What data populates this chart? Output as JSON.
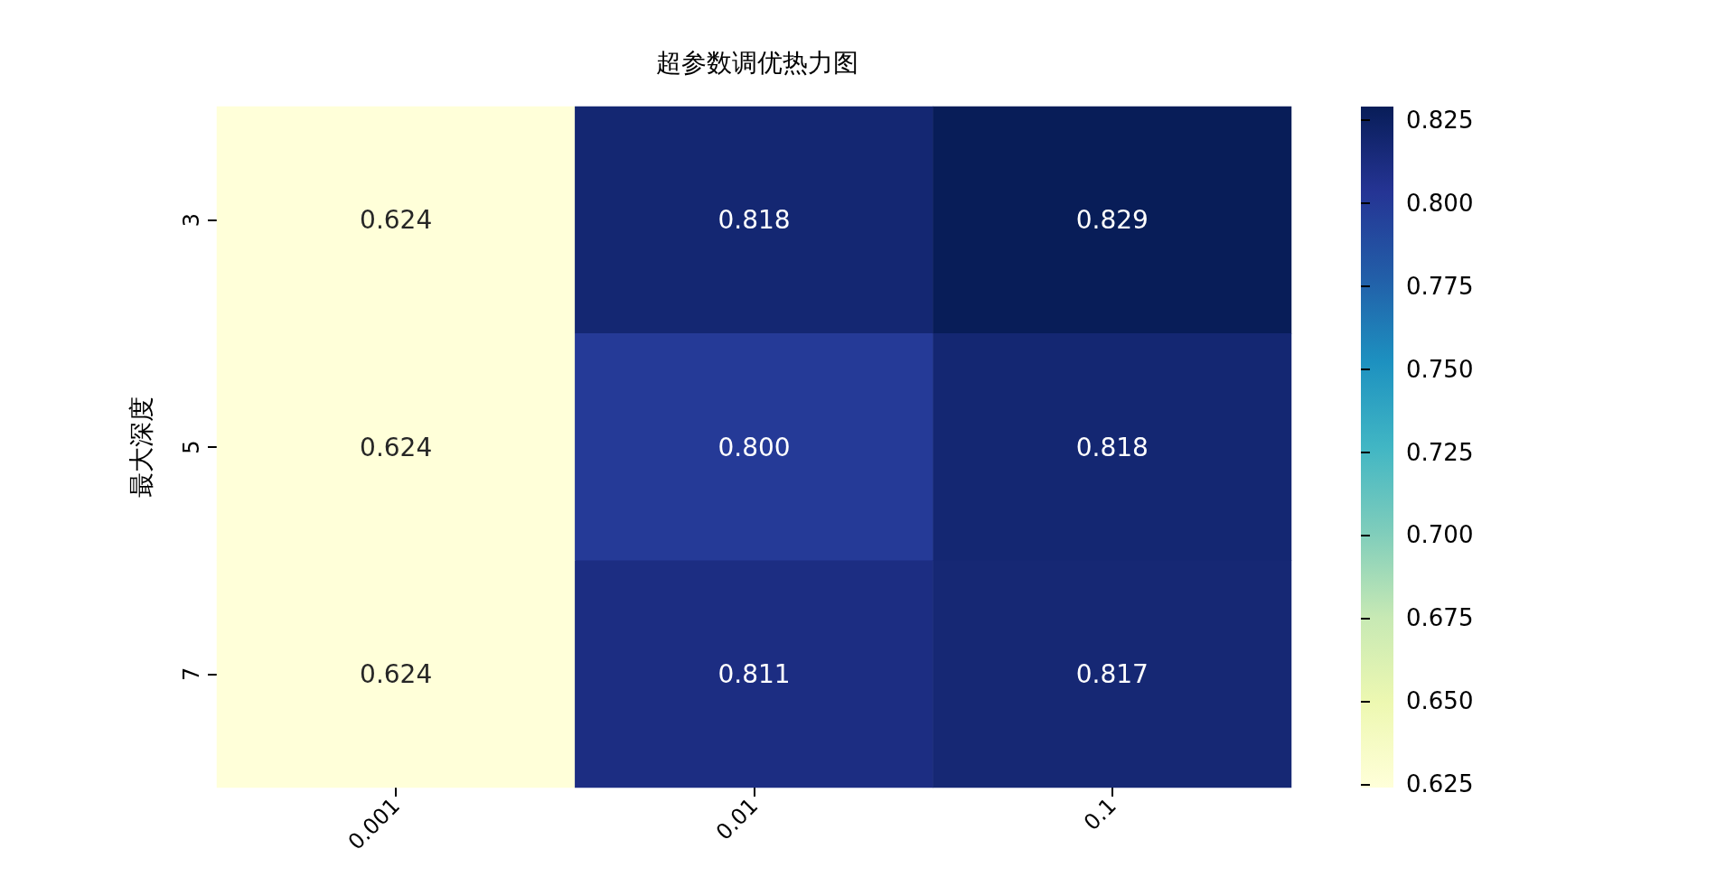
{
  "chart_data": {
    "type": "heatmap",
    "title": "超参数调优热力图",
    "ylabel": "最大深度",
    "categories": [
      "0.001",
      "0.01",
      "0.1"
    ],
    "y_categories": [
      "3",
      "5",
      "7"
    ],
    "cells": [
      [
        0.624,
        0.818,
        0.829
      ],
      [
        0.624,
        0.8,
        0.818
      ],
      [
        0.624,
        0.811,
        0.817
      ]
    ],
    "cell_labels": [
      [
        "0.624",
        "0.818",
        "0.829"
      ],
      [
        "0.624",
        "0.800",
        "0.818"
      ],
      [
        "0.624",
        "0.811",
        "0.817"
      ]
    ],
    "clim": [
      0.624,
      0.829
    ],
    "cticks": [
      0.625,
      {
        "value": 0.65,
        "label": "0.650"
      },
      0.675,
      {
        "value": 0.7,
        "label": "0.700"
      },
      0.725,
      {
        "value": 0.75,
        "label": "0.750"
      },
      0.775,
      {
        "value": 0.8,
        "label": "0.800"
      },
      0.825
    ],
    "grid": false
  }
}
